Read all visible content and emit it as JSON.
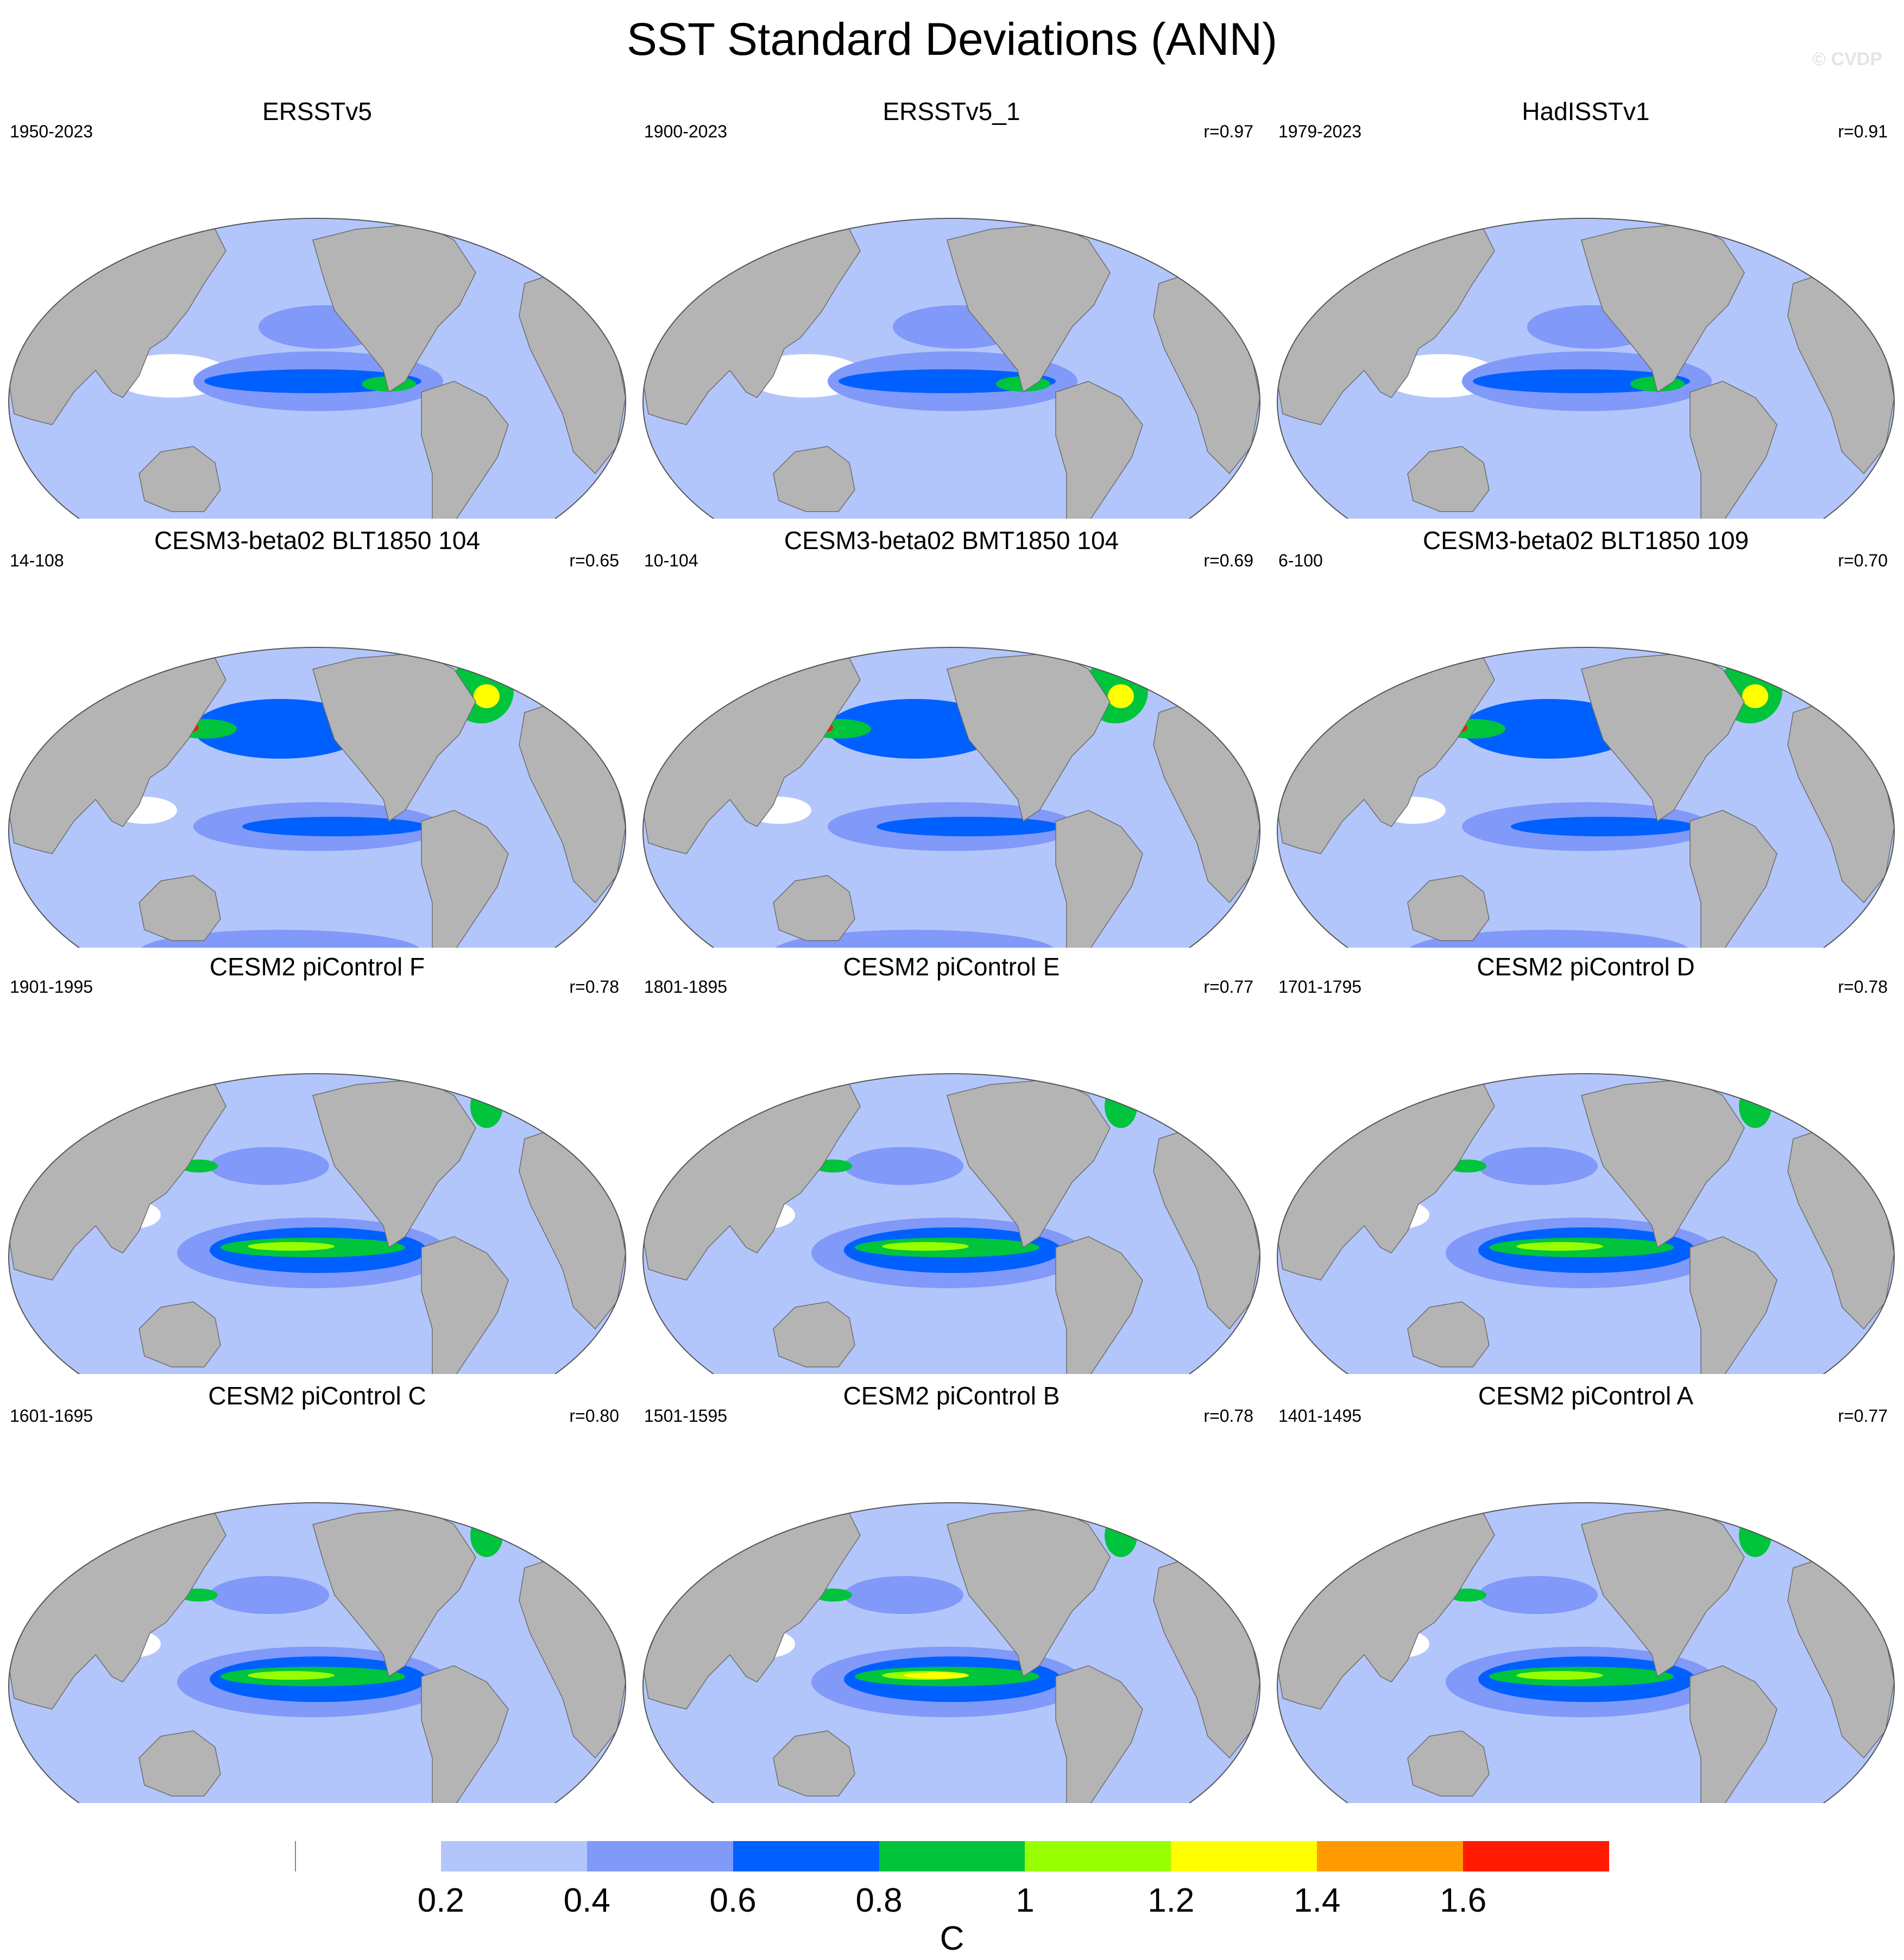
{
  "title": "SST Standard Deviations (ANN)",
  "watermark": "© CVDP",
  "colors": {
    "land": "#b4b4b4",
    "ocean_levels": [
      "#ffffff",
      "#b3c6fb",
      "#8199f8",
      "#0060ff",
      "#00c43c",
      "#98ff00",
      "#ffff00",
      "#ff9b00",
      "#ff1a00"
    ]
  },
  "panels": [
    {
      "title": "ERSSTv5",
      "period": "1950-2023",
      "corr": "",
      "pattern": "obs"
    },
    {
      "title": "ERSSTv5_1",
      "period": "1900-2023",
      "corr": "r=0.97",
      "pattern": "obs"
    },
    {
      "title": "HadISSTv1",
      "period": "1979-2023",
      "corr": "r=0.91",
      "pattern": "obs"
    },
    {
      "title": "CESM3-beta02 BLT1850 104",
      "period": "14-108",
      "corr": "r=0.65",
      "pattern": "cesm3"
    },
    {
      "title": "CESM3-beta02 BMT1850 104",
      "period": "10-104",
      "corr": "r=0.69",
      "pattern": "cesm3"
    },
    {
      "title": "CESM3-beta02 BLT1850 109",
      "period": "6-100",
      "corr": "r=0.70",
      "pattern": "cesm3"
    },
    {
      "title": "CESM2 piControl F",
      "period": "1901-1995",
      "corr": "r=0.78",
      "pattern": "cesm2"
    },
    {
      "title": "CESM2 piControl E",
      "period": "1801-1895",
      "corr": "r=0.77",
      "pattern": "cesm2"
    },
    {
      "title": "CESM2 piControl D",
      "period": "1701-1795",
      "corr": "r=0.78",
      "pattern": "cesm2"
    },
    {
      "title": "CESM2 piControl C",
      "period": "1601-1695",
      "corr": "r=0.80",
      "pattern": "cesm2"
    },
    {
      "title": "CESM2 piControl B",
      "period": "1501-1595",
      "corr": "r=0.78",
      "pattern": "cesm2"
    },
    {
      "title": "CESM2 piControl A",
      "period": "1401-1495",
      "corr": "r=0.77",
      "pattern": "cesm2"
    }
  ],
  "colorbar": {
    "tick_labels": [
      "0.2",
      "0.4",
      "0.6",
      "0.8",
      "1",
      "1.2",
      "1.4",
      "1.6"
    ],
    "unit": "C"
  }
}
